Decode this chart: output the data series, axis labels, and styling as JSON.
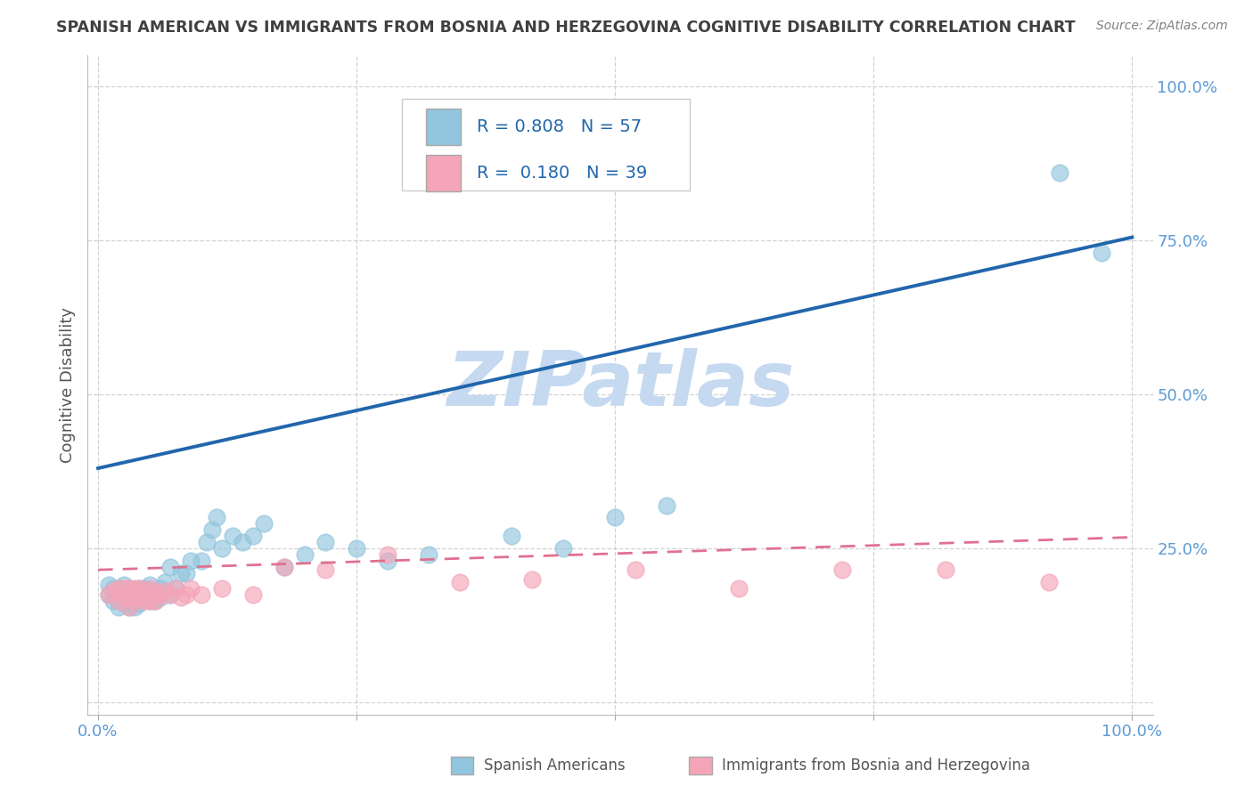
{
  "title": "SPANISH AMERICAN VS IMMIGRANTS FROM BOSNIA AND HERZEGOVINA COGNITIVE DISABILITY CORRELATION CHART",
  "source": "Source: ZipAtlas.com",
  "ylabel": "Cognitive Disability",
  "xlim": [
    -0.01,
    1.02
  ],
  "ylim": [
    -0.02,
    1.05
  ],
  "xticks": [
    0.0,
    0.25,
    0.5,
    0.75,
    1.0
  ],
  "yticks": [
    0.0,
    0.25,
    0.5,
    0.75,
    1.0
  ],
  "xtick_labels": [
    "0.0%",
    "",
    "",
    "",
    "100.0%"
  ],
  "ytick_labels": [
    "",
    "25.0%",
    "50.0%",
    "75.0%",
    "100.0%"
  ],
  "blue_color": "#92c5de",
  "pink_color": "#f4a5b8",
  "blue_line_color": "#2166ac",
  "pink_line_color": "#e07090",
  "legend_text_color": "#2166ac",
  "axis_label_color": "#5b9bd5",
  "watermark_color": "#c5d9f0",
  "grid_color": "#c8c8c8",
  "background_color": "#ffffff",
  "title_color": "#404040",
  "source_color": "#808080",
  "blue_line_x": [
    0.0,
    1.0
  ],
  "blue_line_y": [
    0.38,
    0.755
  ],
  "pink_line_x": [
    0.0,
    1.0
  ],
  "pink_line_y": [
    0.215,
    0.268
  ],
  "blue_scatter_x": [
    0.01,
    0.01,
    0.015,
    0.015,
    0.02,
    0.02,
    0.02,
    0.025,
    0.025,
    0.025,
    0.03,
    0.03,
    0.03,
    0.03,
    0.035,
    0.035,
    0.035,
    0.04,
    0.04,
    0.04,
    0.045,
    0.045,
    0.05,
    0.05,
    0.05,
    0.055,
    0.055,
    0.06,
    0.06,
    0.065,
    0.07,
    0.07,
    0.075,
    0.08,
    0.085,
    0.09,
    0.1,
    0.105,
    0.11,
    0.115,
    0.12,
    0.13,
    0.14,
    0.15,
    0.16,
    0.18,
    0.2,
    0.22,
    0.25,
    0.28,
    0.32,
    0.4,
    0.45,
    0.5,
    0.55,
    0.93,
    0.97
  ],
  "blue_scatter_y": [
    0.175,
    0.19,
    0.165,
    0.185,
    0.155,
    0.17,
    0.185,
    0.16,
    0.175,
    0.19,
    0.155,
    0.165,
    0.175,
    0.185,
    0.155,
    0.168,
    0.18,
    0.16,
    0.175,
    0.185,
    0.17,
    0.185,
    0.165,
    0.175,
    0.19,
    0.165,
    0.18,
    0.17,
    0.185,
    0.195,
    0.175,
    0.22,
    0.185,
    0.21,
    0.21,
    0.23,
    0.23,
    0.26,
    0.28,
    0.3,
    0.25,
    0.27,
    0.26,
    0.27,
    0.29,
    0.22,
    0.24,
    0.26,
    0.25,
    0.23,
    0.24,
    0.27,
    0.25,
    0.3,
    0.32,
    0.86,
    0.73
  ],
  "pink_scatter_x": [
    0.01,
    0.015,
    0.02,
    0.02,
    0.025,
    0.025,
    0.03,
    0.03,
    0.03,
    0.035,
    0.035,
    0.04,
    0.04,
    0.045,
    0.045,
    0.05,
    0.05,
    0.055,
    0.055,
    0.06,
    0.065,
    0.07,
    0.075,
    0.08,
    0.085,
    0.09,
    0.1,
    0.12,
    0.15,
    0.18,
    0.22,
    0.28,
    0.35,
    0.42,
    0.52,
    0.62,
    0.72,
    0.82,
    0.92
  ],
  "pink_scatter_y": [
    0.175,
    0.18,
    0.165,
    0.185,
    0.17,
    0.185,
    0.155,
    0.17,
    0.185,
    0.165,
    0.185,
    0.17,
    0.185,
    0.165,
    0.18,
    0.165,
    0.185,
    0.165,
    0.18,
    0.175,
    0.18,
    0.175,
    0.185,
    0.17,
    0.175,
    0.185,
    0.175,
    0.185,
    0.175,
    0.22,
    0.215,
    0.24,
    0.195,
    0.2,
    0.215,
    0.185,
    0.215,
    0.215,
    0.195
  ],
  "legend_blue_label": "R = 0.808   N = 57",
  "legend_pink_label": "R =  0.180   N = 39",
  "bottom_legend_blue": "Spanish Americans",
  "bottom_legend_pink": "Immigrants from Bosnia and Herzegovina"
}
